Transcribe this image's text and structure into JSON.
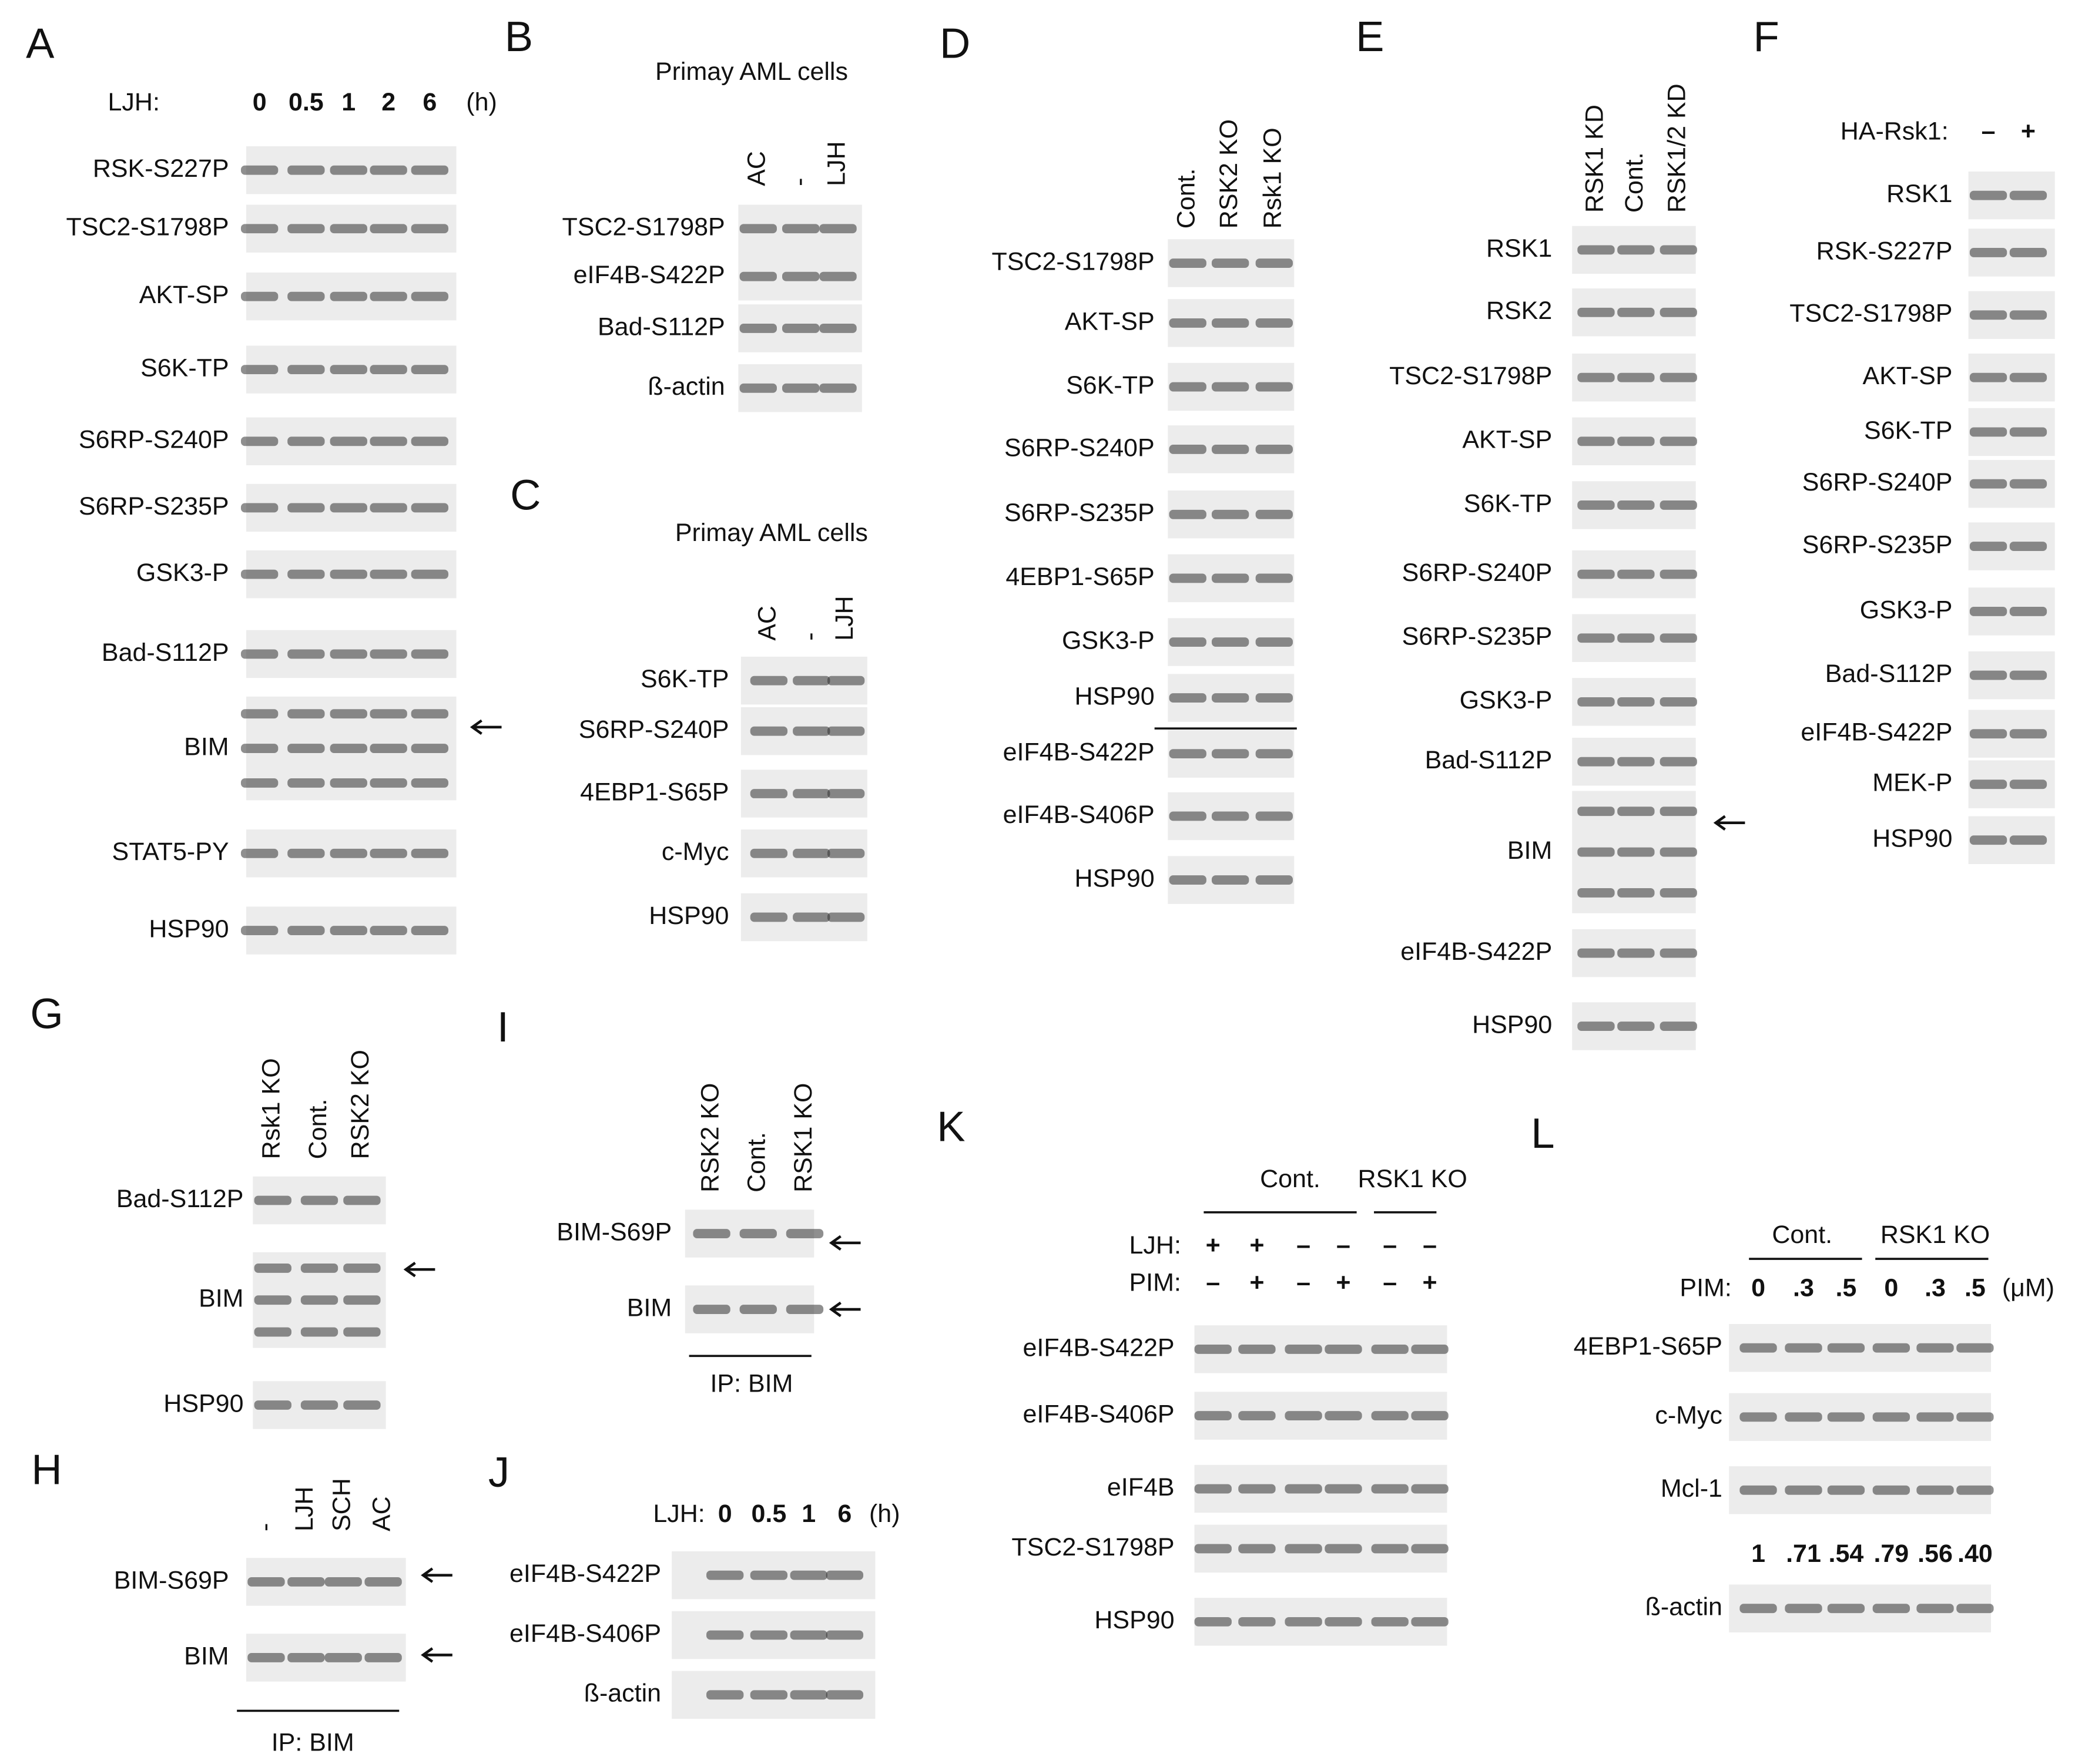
{
  "panels": [
    {
      "letter": "A",
      "headers": [
        {
          "label": "LJH:",
          "lanes": [
            "0",
            "0.5",
            "1",
            "2",
            "6"
          ],
          "unit": "(h)"
        }
      ],
      "rows": [
        "RSK-S227P",
        "TSC2-S1798P",
        "AKT-SP",
        "S6K-TP",
        "S6RP-S240P",
        "S6RP-S235P",
        "GSK3-P",
        "Bad-S112P",
        "BIM",
        "STAT5-PY",
        "HSP90"
      ]
    },
    {
      "letter": "B",
      "title": "Primay AML cells",
      "lanes": [
        "AC",
        "-",
        "LJH"
      ],
      "rows": [
        "TSC2-S1798P",
        "eIF4B-S422P",
        "Bad-S112P",
        "ß-actin"
      ]
    },
    {
      "letter": "C",
      "title": "Primay AML cells",
      "lanes": [
        "AC",
        "-",
        "LJH"
      ],
      "rows": [
        "S6K-TP",
        "S6RP-S240P",
        "4EBP1-S65P",
        "c-Myc",
        "HSP90"
      ]
    },
    {
      "letter": "D",
      "lanes": [
        "Cont.",
        "RSK2 KO",
        "Rsk1 KO"
      ],
      "rows": [
        "TSC2-S1798P",
        "AKT-SP",
        "S6K-TP",
        "S6RP-S240P",
        "S6RP-S235P",
        "4EBP1-S65P",
        "GSK3-P",
        "HSP90",
        "eIF4B-S422P",
        "eIF4B-S406P",
        "HSP90"
      ]
    },
    {
      "letter": "E",
      "lanes": [
        "RSK1 KD",
        "Cont.",
        "RSK1/2 KD"
      ],
      "rows": [
        "RSK1",
        "RSK2",
        "TSC2-S1798P",
        "AKT-SP",
        "S6K-TP",
        "S6RP-S240P",
        "S6RP-S235P",
        "GSK3-P",
        "Bad-S112P",
        "BIM",
        "eIF4B-S422P",
        "HSP90"
      ]
    },
    {
      "letter": "F",
      "headers": [
        {
          "label": "HA-Rsk1:",
          "lanes": [
            "–",
            "+"
          ]
        }
      ],
      "rows": [
        "RSK1",
        "RSK-S227P",
        "TSC2-S1798P",
        "AKT-SP",
        "S6K-TP",
        "S6RP-S240P",
        "S6RP-S235P",
        "GSK3-P",
        "Bad-S112P",
        "eIF4B-S422P",
        "MEK-P",
        "HSP90"
      ]
    },
    {
      "letter": "G",
      "lanes": [
        "Rsk1 KO",
        "Cont.",
        "RSK2 KO"
      ],
      "rows": [
        "Bad-S112P",
        "BIM",
        "HSP90"
      ]
    },
    {
      "letter": "H",
      "lanes": [
        "-",
        "LJH",
        "SCH",
        "AC"
      ],
      "rows": [
        "BIM-S69P",
        "BIM"
      ],
      "footer": "IP: BIM"
    },
    {
      "letter": "I",
      "lanes": [
        "RSK2 KO",
        "Cont.",
        "RSK1 KO"
      ],
      "rows": [
        "BIM-S69P",
        "BIM"
      ],
      "footer": "IP: BIM"
    },
    {
      "letter": "J",
      "headers": [
        {
          "label": "LJH:",
          "lanes": [
            "0",
            "0.5",
            "1",
            "6"
          ],
          "unit": "(h)"
        }
      ],
      "rows": [
        "eIF4B-S422P",
        "eIF4B-S406P",
        "ß-actin"
      ]
    },
    {
      "letter": "K",
      "groups": [
        "Cont.",
        "RSK1 KO"
      ],
      "headers": [
        {
          "label": "LJH:",
          "lanes": [
            "+",
            "+",
            "–",
            "–",
            "–",
            "–"
          ]
        },
        {
          "label": "PIM:",
          "lanes": [
            "–",
            "+",
            "–",
            "+",
            "–",
            "+"
          ]
        }
      ],
      "rows": [
        "eIF4B-S422P",
        "eIF4B-S406P",
        "eIF4B",
        "TSC2-S1798P",
        "HSP90"
      ]
    },
    {
      "letter": "L",
      "groups": [
        "Cont.",
        "RSK1 KO"
      ],
      "headers": [
        {
          "label": "PIM:",
          "lanes": [
            "0",
            ".3",
            ".5",
            "0",
            ".3",
            ".5"
          ],
          "unit": "(μM)"
        }
      ],
      "rows": [
        "4EBP1-S65P",
        "c-Myc",
        "Mcl-1",
        "ß-actin"
      ],
      "quantification": [
        "1",
        ".71",
        ".54",
        ".79",
        ".56",
        ".40"
      ]
    }
  ]
}
